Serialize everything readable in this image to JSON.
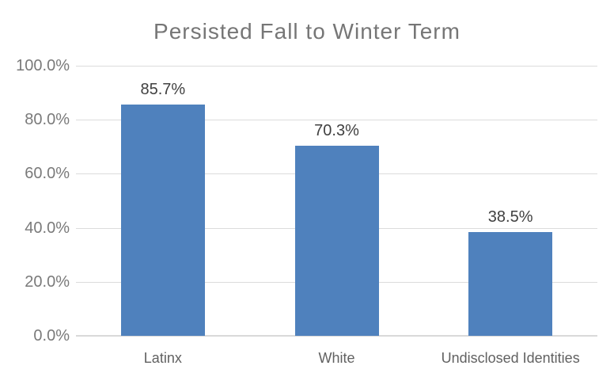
{
  "chart": {
    "colors": {
      "bar": "#4F81BD",
      "gridline": "#DCDCDC",
      "axis_line": "#D9D9D9",
      "title_text": "#767676",
      "ytick_text": "#7A7A7A",
      "xtick_text": "#616161",
      "data_label_text": "#404040",
      "background": "#FFFFFF"
    }
  },
  "chart_data": {
    "type": "bar",
    "title": "Persisted Fall to Winter Term",
    "categories": [
      "Latinx",
      "White",
      "Undisclosed Identities"
    ],
    "values": [
      85.7,
      70.3,
      38.5
    ],
    "data_labels": [
      "85.7%",
      "70.3%",
      "38.5%"
    ],
    "xlabel": "",
    "ylabel": "",
    "ylim": [
      0,
      100
    ],
    "yticks": [
      0,
      20,
      40,
      60,
      80,
      100
    ],
    "ytick_labels": [
      "0.0%",
      "20.0%",
      "40.0%",
      "60.0%",
      "80.0%",
      "100.0%"
    ],
    "grid": true,
    "legend": false,
    "bar_color": "#4F81BD"
  }
}
